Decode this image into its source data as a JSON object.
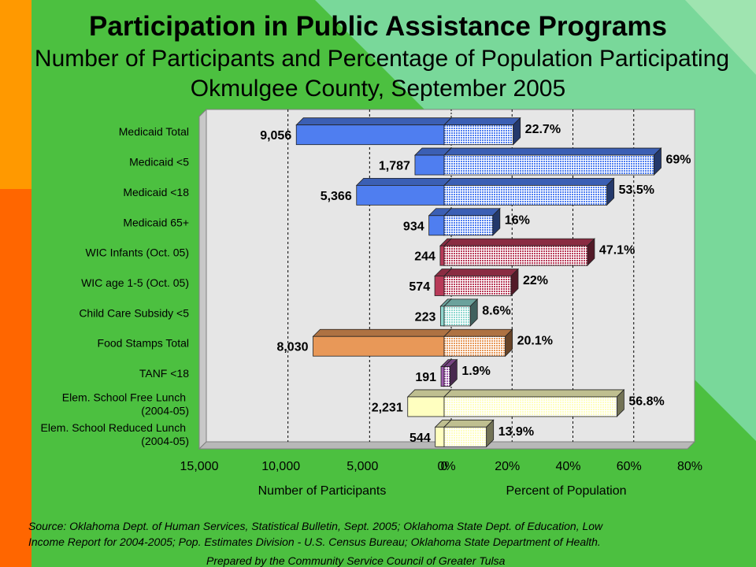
{
  "title": "Participation in Public Assistance Programs",
  "subtitle1": "Number of Participants and Percentage of Population Participating",
  "subtitle2": "Okmulgee County, September 2005",
  "source_line1": "Source:  Oklahoma Dept. of Human Services, Statistical Bulletin, Sept. 2005; Oklahoma State Dept. of Education, Low",
  "source_line2": "Income Report for 2004-2005; Pop. Estimates Division - U.S. Census Bureau; Oklahoma State Department of Health.",
  "prepared_by": "Prepared by the Community Service Council of Greater Tulsa",
  "colors": {
    "background": "#4cc040",
    "plot_area": "#e6e6e6",
    "blue": "#4f7ef0",
    "maroon": "#b83a58",
    "teal": "#8fd8d0",
    "orange": "#e89858",
    "purple": "#a05cb0",
    "yellow": "#ffffc0"
  },
  "chart_data": {
    "type": "bar",
    "orientation": "horizontal",
    "layout": "back-to-back",
    "categories": [
      [
        "Medicaid Total"
      ],
      [
        "Medicaid <5"
      ],
      [
        "Medicaid <18"
      ],
      [
        "Medicaid 65+"
      ],
      [
        "WIC Infants (Oct. 05)"
      ],
      [
        "WIC age 1-5 (Oct. 05)"
      ],
      [
        "Child Care Subsidy <5"
      ],
      [
        "Food Stamps Total"
      ],
      [
        "TANF <18"
      ],
      [
        "Elem. School Free Lunch",
        "(2004-05)"
      ],
      [
        "Elem. School Reduced Lunch",
        "(2004-05)"
      ]
    ],
    "participants": {
      "axis_label": "Number of Participants",
      "range": [
        15000,
        0
      ],
      "ticks": [
        "15,000",
        "10,000",
        "5,000",
        "0"
      ],
      "values": [
        9056,
        1787,
        5366,
        934,
        244,
        574,
        223,
        8030,
        191,
        2231,
        544
      ],
      "labels": [
        "9,056",
        "1,787",
        "5,366",
        "934",
        "244",
        "574",
        "223",
        "8,030",
        "191",
        "2,231",
        "544"
      ]
    },
    "percent": {
      "axis_label": "Percent of Population",
      "range": [
        0,
        80
      ],
      "ticks": [
        "0%",
        "20%",
        "40%",
        "60%",
        "80%"
      ],
      "values": [
        22.7,
        69,
        53.5,
        16,
        47.1,
        22,
        8.6,
        20.1,
        1.9,
        56.8,
        13.9
      ],
      "labels": [
        "22.7%",
        "69%",
        "53.5%",
        "16%",
        "47.1%",
        "22%",
        "8.6%",
        "20.1%",
        "1.9%",
        "56.8%",
        "13.9%"
      ]
    },
    "bar_colors": [
      "blue",
      "blue",
      "blue",
      "blue",
      "maroon",
      "maroon",
      "teal",
      "orange",
      "purple",
      "yellow",
      "yellow"
    ]
  }
}
